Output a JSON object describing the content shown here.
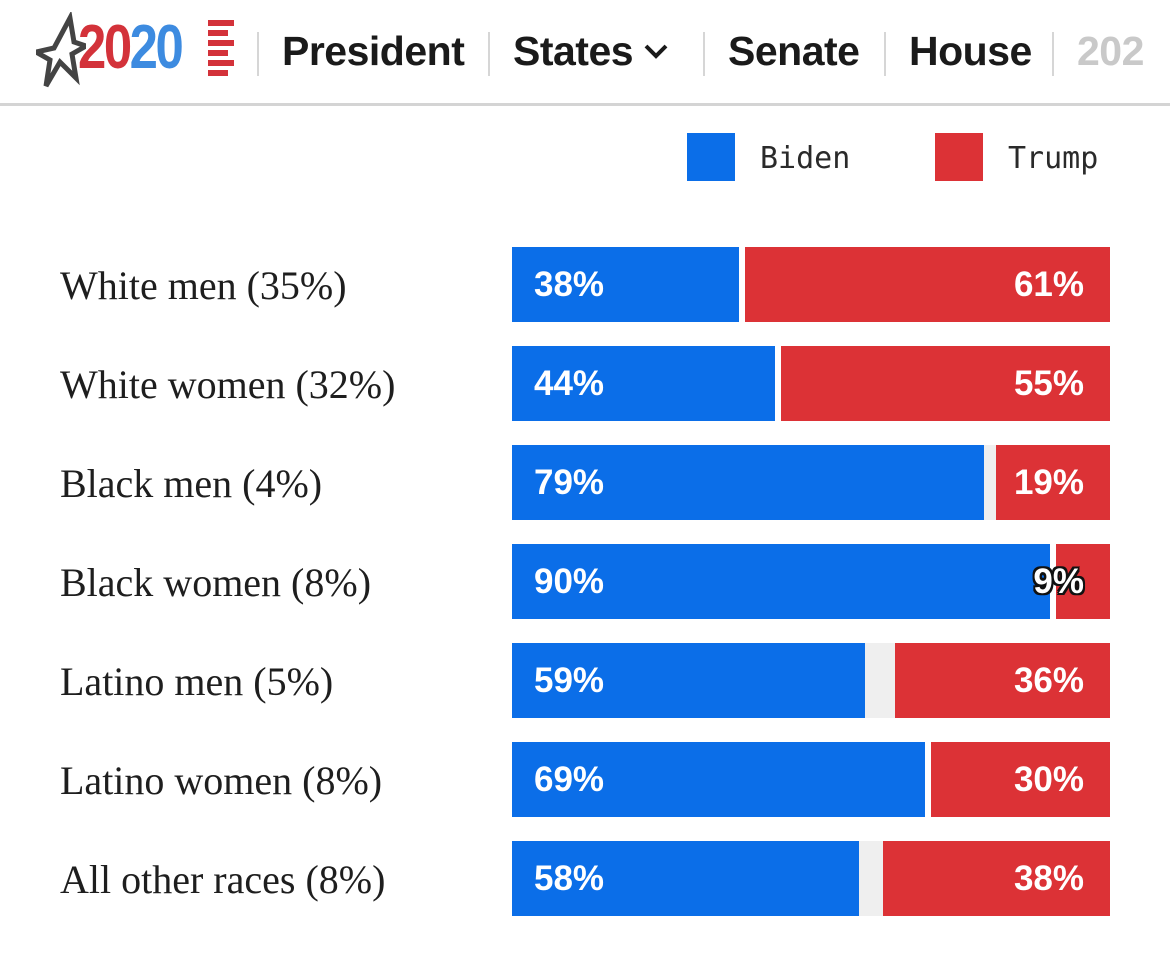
{
  "nav": {
    "logo": {
      "year": "2020"
    },
    "items": [
      {
        "label": "President"
      },
      {
        "label": "States"
      },
      {
        "label": "Senate"
      },
      {
        "label": "House"
      },
      {
        "label": "202"
      }
    ]
  },
  "colors": {
    "biden": "#0b6ee8",
    "trump": "#dc3236",
    "track": "#efefef"
  },
  "chart_data": {
    "type": "bar",
    "orientation": "horizontal",
    "stacked": true,
    "title": "",
    "legend": {
      "placement": "top-right",
      "entries": [
        "Biden",
        "Trump"
      ]
    },
    "xlim": [
      0,
      100
    ],
    "categories": [
      "White men (35%)",
      "White women (32%)",
      "Black men (4%)",
      "Black women (8%)",
      "Latino men (5%)",
      "Latino women (8%)",
      "All other races (8%)"
    ],
    "series": [
      {
        "name": "Biden",
        "color": "#0b6ee8",
        "values": [
          38,
          44,
          79,
          90,
          59,
          69,
          58
        ],
        "labels": [
          "38%",
          "44%",
          "79%",
          "90%",
          "59%",
          "69%",
          "58%"
        ]
      },
      {
        "name": "Trump",
        "color": "#dc3236",
        "values": [
          61,
          55,
          19,
          9,
          36,
          30,
          38
        ],
        "labels": [
          "61%",
          "55%",
          "19%",
          "9%",
          "36%",
          "30%",
          "38%"
        ]
      }
    ]
  }
}
